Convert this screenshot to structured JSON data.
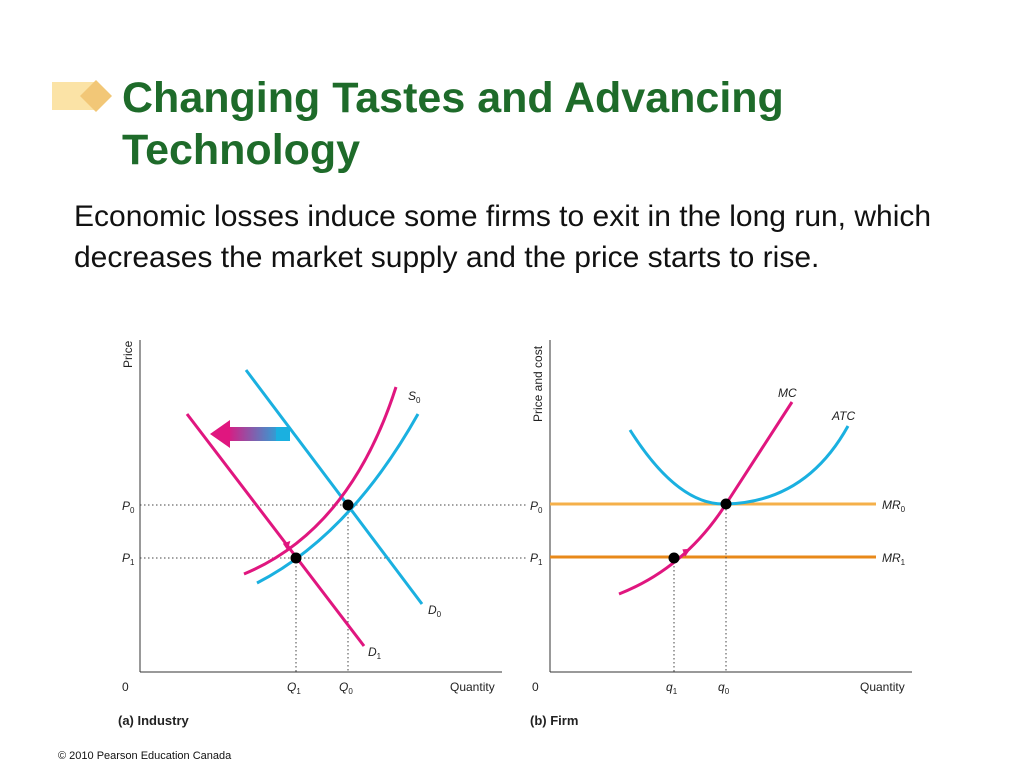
{
  "slide": {
    "title": "Changing Tastes and Advancing Technology",
    "body": "Economic losses induce some firms to exit in the long run, which decreases the market supply and the price starts to rise.",
    "copyright": "© 2010 Pearson Education Canada"
  },
  "colors": {
    "title": "#1e6b2a",
    "demand": "#1ab0e0",
    "magenta": "#e0167f",
    "orange_light": "#f5b04a",
    "orange_dark": "#e8891a",
    "bullet": "#f2c777"
  },
  "industry": {
    "y_axis": "Price",
    "x_axis": "Quantity",
    "origin": "0",
    "p0": "P",
    "p0_sub": "0",
    "p1": "P",
    "p1_sub": "1",
    "q0": "Q",
    "q0_sub": "0",
    "q1": "Q",
    "q1_sub": "1",
    "s0": "S",
    "s0_sub": "0",
    "d0": "D",
    "d0_sub": "0",
    "d1": "D",
    "d1_sub": "1",
    "caption": "(a) Industry"
  },
  "firm": {
    "y_axis": "Price and cost",
    "x_axis": "Quantity",
    "origin": "0",
    "p0": "P",
    "p0_sub": "0",
    "p1": "P",
    "p1_sub": "1",
    "q0": "q",
    "q0_sub": "0",
    "q1": "q",
    "q1_sub": "1",
    "mc": "MC",
    "atc": "ATC",
    "mr0": "MR",
    "mr0_sub": "0",
    "mr1": "MR",
    "mr1_sub": "1",
    "caption": "(b) Firm"
  }
}
